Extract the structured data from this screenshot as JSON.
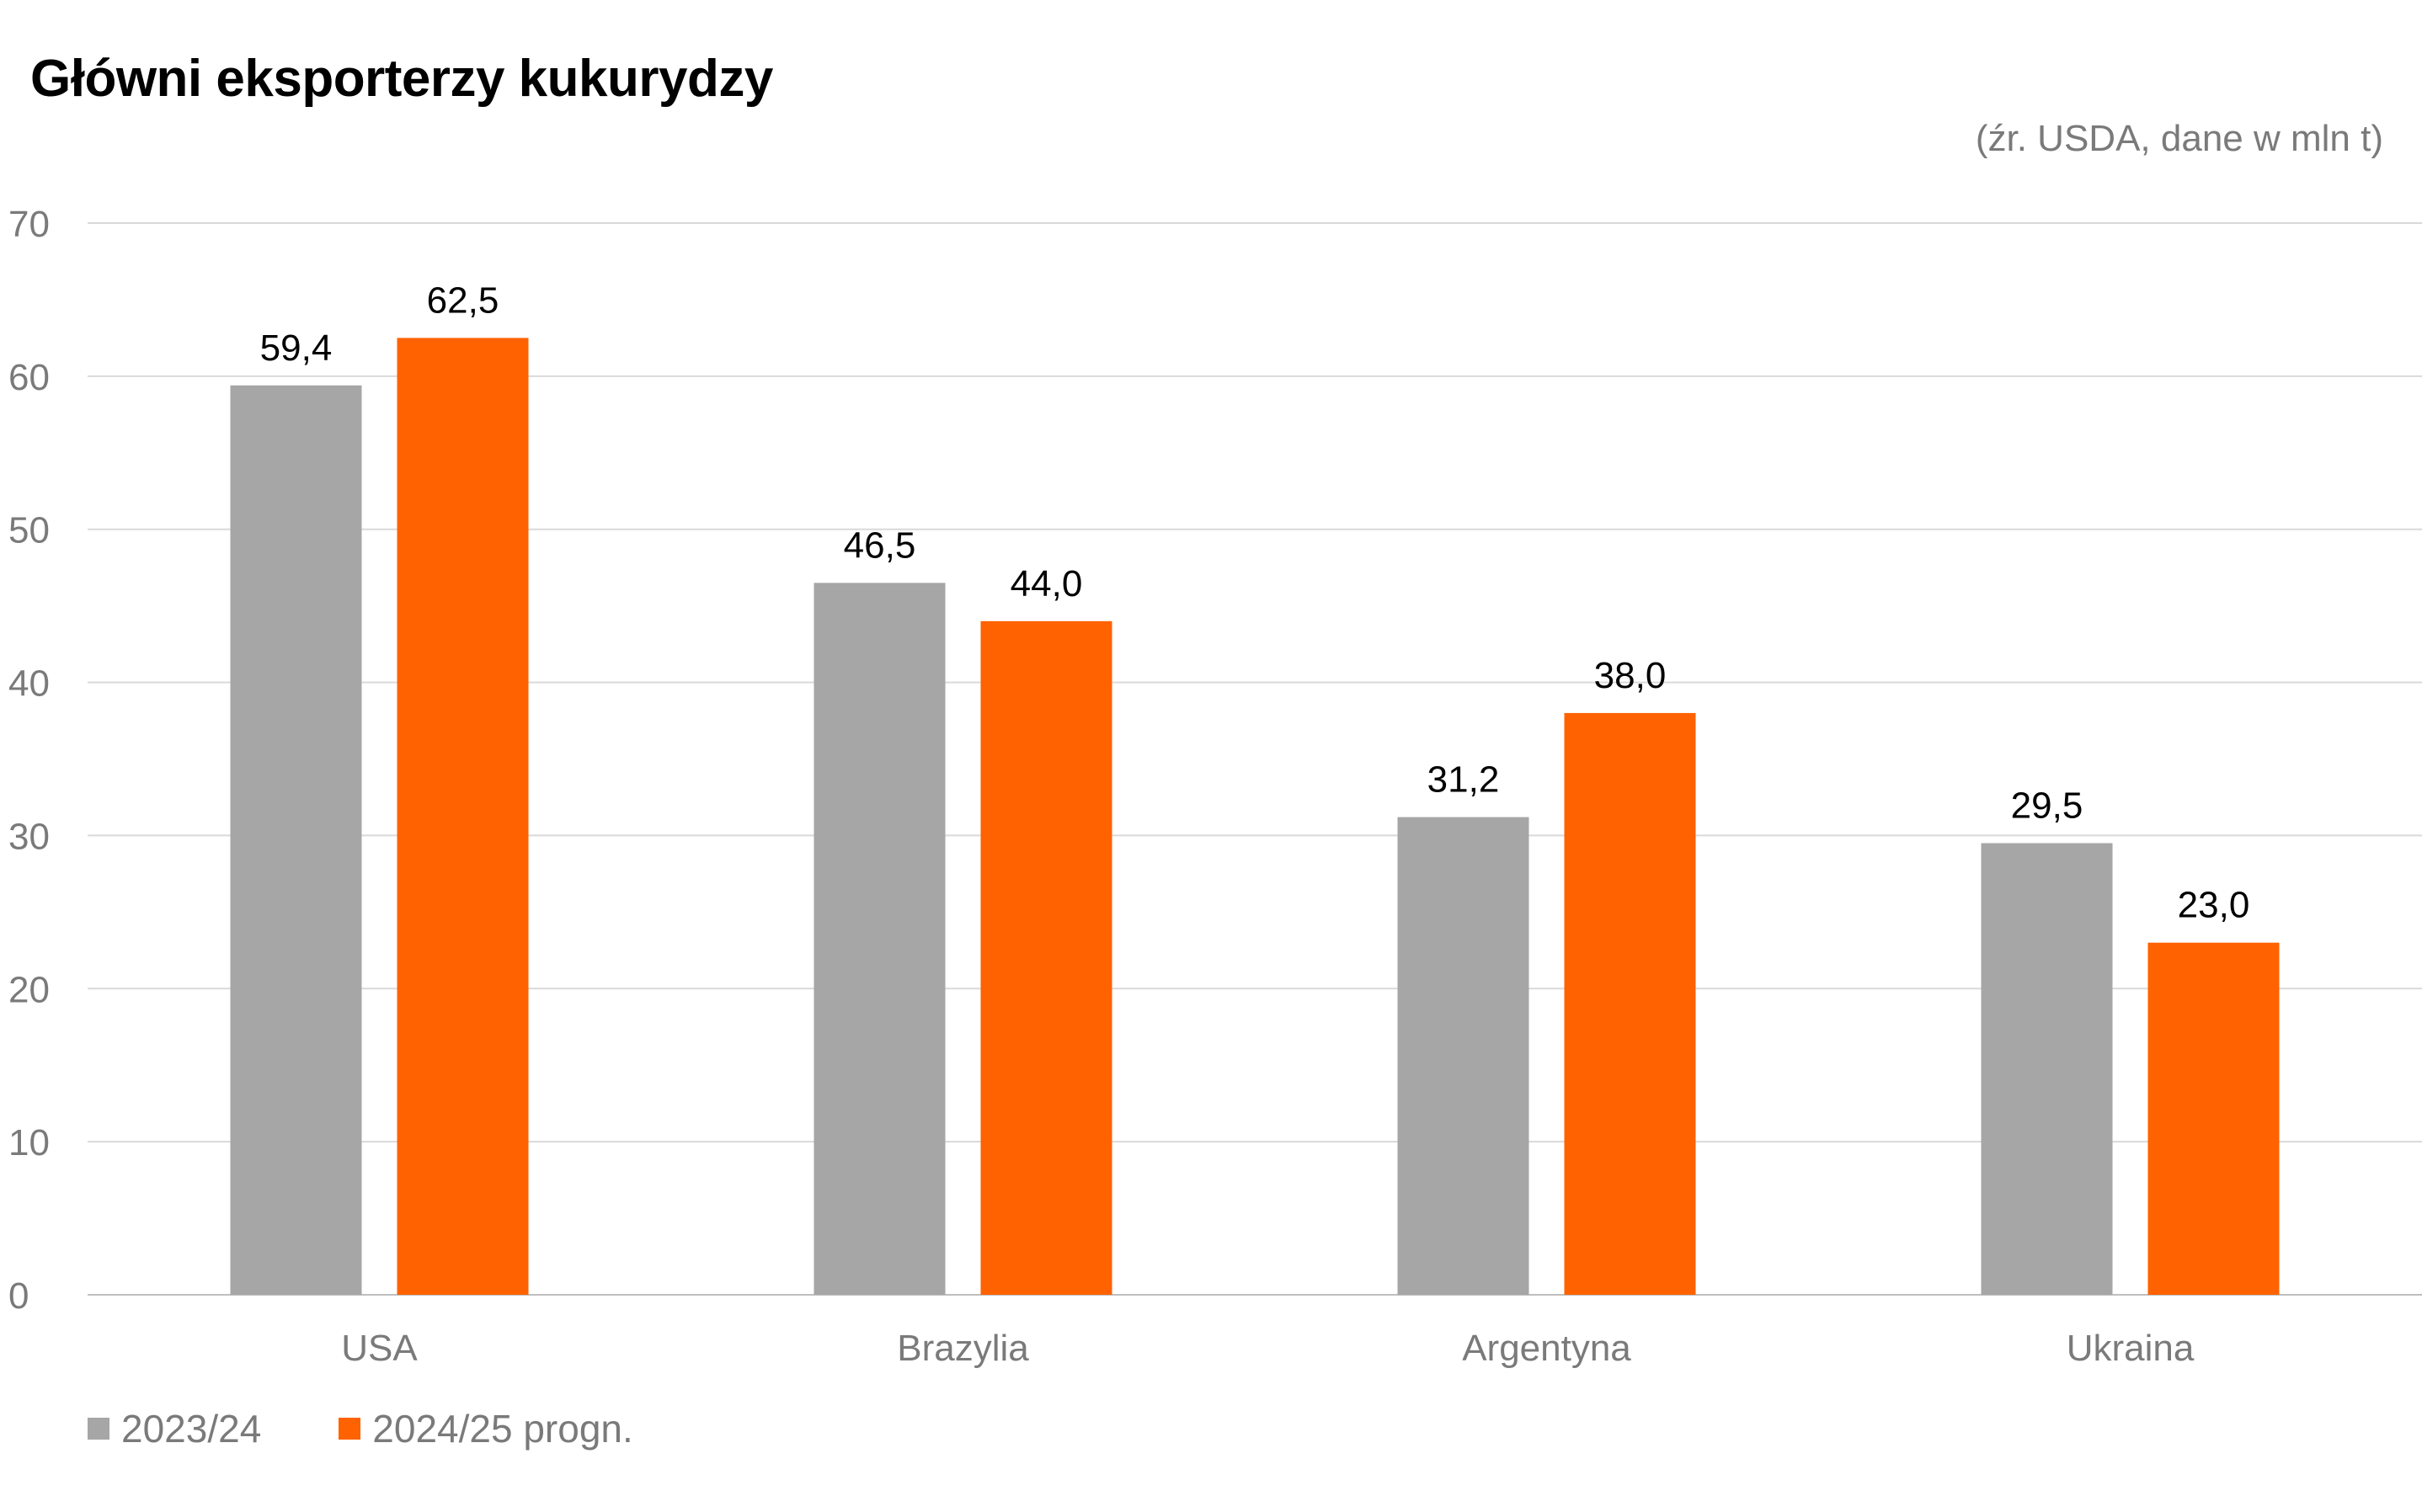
{
  "chart_data": {
    "type": "bar",
    "title": "Główni eksporterzy kukurydzy",
    "subtitle": "(źr. USDA, dane w mln t)",
    "categories": [
      "USA",
      "Brazylia",
      "Argentyna",
      "Ukraina"
    ],
    "series": [
      {
        "name": "2023/24",
        "color": "#a6a6a6",
        "values": [
          59.4,
          46.5,
          31.2,
          29.5
        ],
        "labels": [
          "59,4",
          "46,5",
          "31,2",
          "29,5"
        ]
      },
      {
        "name": "2024/25 progn.",
        "color": "#ff6200",
        "values": [
          62.5,
          44.0,
          38.0,
          23.0
        ],
        "labels": [
          "62,5",
          "44,0",
          "38,0",
          "23,0"
        ]
      }
    ],
    "ylim": [
      0,
      70
    ],
    "yticks": [
      0,
      10,
      20,
      30,
      40,
      50,
      60,
      70
    ],
    "xlabel": "",
    "ylabel": "",
    "grid": true,
    "legend_position": "bottom-left"
  }
}
